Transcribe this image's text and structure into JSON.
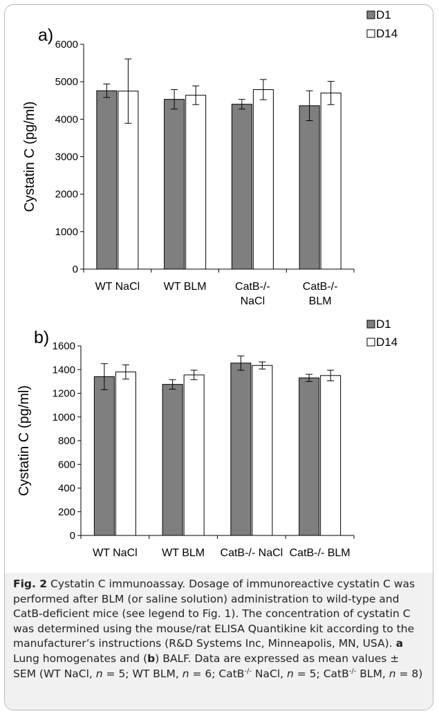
{
  "chart_data": [
    {
      "panel": "a)",
      "type": "bar",
      "ylabel": "Cystatin C (pg/ml)",
      "ylim": [
        0,
        6000
      ],
      "yticks": [
        0,
        1000,
        2000,
        3000,
        4000,
        5000,
        6000
      ],
      "categories": [
        [
          "WT NaCl"
        ],
        [
          "WT BLM"
        ],
        [
          "CatB-/-",
          "NaCl"
        ],
        [
          "CatB-/-",
          "BLM"
        ]
      ],
      "series": [
        {
          "name": "D1",
          "color": "#7f7f7f",
          "values": [
            4760,
            4530,
            4400,
            4360
          ],
          "errors": [
            180,
            260,
            130,
            400
          ]
        },
        {
          "name": "D14",
          "color": "#ffffff",
          "values": [
            4750,
            4640,
            4790,
            4700
          ],
          "errors": [
            860,
            250,
            270,
            310
          ]
        }
      ],
      "legend": "top-right",
      "grid": false
    },
    {
      "panel": "b)",
      "type": "bar",
      "ylabel": "Cystatin C (pg/ml)",
      "ylim": [
        0,
        1600
      ],
      "yticks": [
        0,
        200,
        400,
        600,
        800,
        1000,
        1200,
        1400,
        1600
      ],
      "categories": [
        [
          "WT NaCl"
        ],
        [
          "WT BLM"
        ],
        [
          "CatB-/- NaCl"
        ],
        [
          "CatB-/- BLM"
        ]
      ],
      "series": [
        {
          "name": "D1",
          "color": "#7f7f7f",
          "values": [
            1340,
            1275,
            1455,
            1330
          ],
          "errors": [
            110,
            40,
            60,
            30
          ]
        },
        {
          "name": "D14",
          "color": "#ffffff",
          "values": [
            1380,
            1355,
            1435,
            1350
          ],
          "errors": [
            60,
            40,
            30,
            45
          ]
        }
      ],
      "legend": "top-right",
      "grid": false
    }
  ],
  "caption": {
    "label": "Fig. 2",
    "title": " Cystatin C immunoassay.",
    "body1": " Dosage of immunoreactive cystatin C was performed after BLM (or saline solution) administration to wild-type and CatB-deficient mice (see legend to Fig. 1). The concentration of cystatin C was determined using the mouse/rat ELISA Quantikine kit according to the manufacturer’s instructions (R&D Systems Inc, Minneapolis, MN, USA).",
    "a_label": "a",
    "a_text": " Lung homogenates and (",
    "b_label": "b",
    "b_text": ") BALF. Data are expressed as mean values ± SEM (WT NaCl, ",
    "n_symbol": "n",
    "n1": " = 5; WT BLM, ",
    "n2": " = 6; CatB",
    "sup": "-/-",
    "n3": " NaCl, ",
    "n4": " = 5; CatB",
    "n5": " BLM, ",
    "n6": " = 8)"
  }
}
